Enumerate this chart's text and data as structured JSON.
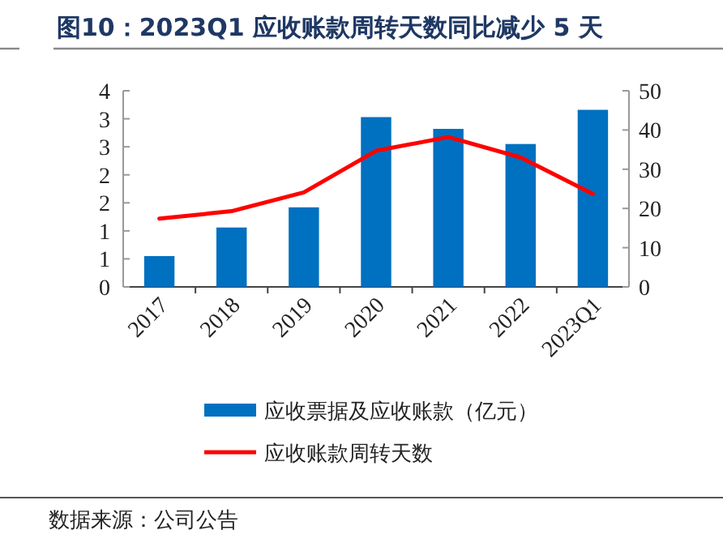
{
  "chart_data": {
    "type": "bar",
    "title": "图10：2023Q1 应收账款周转天数同比减少 5 天",
    "categories": [
      "2017",
      "2018",
      "2019",
      "2020",
      "2021",
      "2022",
      "2023Q1"
    ],
    "series": [
      {
        "name": "应收票据及应收账款（亿元）",
        "color": "#0070c0",
        "values": [
          0.55,
          1.06,
          1.42,
          3.03,
          2.82,
          2.55,
          3.16
        ]
      },
      {
        "name": "应收账款周转天数",
        "type": "line",
        "axis": "y2",
        "color": "#ff0000",
        "values": [
          17.4,
          19.3,
          24.1,
          34.7,
          38.2,
          33.0,
          23.7
        ]
      }
    ],
    "ylim": [
      0,
      3.5
    ],
    "yticks": [
      0,
      {
        "value": 0.5,
        "label": "1"
      },
      {
        "value": 1,
        "label": "1"
      },
      {
        "value": 1.5,
        "label": "2"
      },
      {
        "value": 2,
        "label": "2"
      },
      {
        "value": 2.5,
        "label": "3"
      },
      {
        "value": 3,
        "label": "3"
      },
      {
        "value": 3.5,
        "label": "4"
      }
    ],
    "y2lim": [
      0,
      50
    ],
    "y2ticks": [
      0,
      10,
      20,
      30,
      40,
      50
    ],
    "legend": "bottom",
    "annotations": [
      "数据来源：公司公告"
    ]
  }
}
